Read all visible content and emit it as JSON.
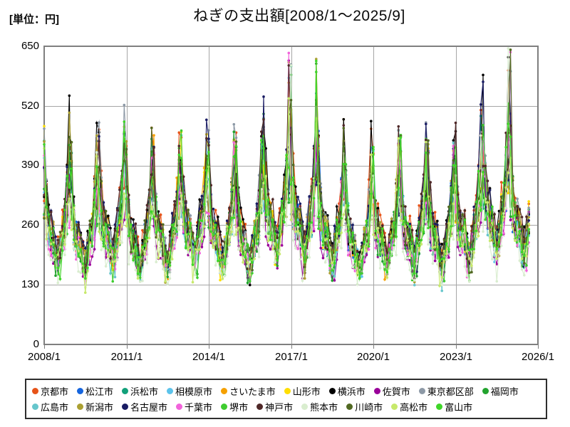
{
  "page": {
    "title": "ねぎの支出額[2008/1～2025/9]",
    "unit_label": "[単位：円]"
  },
  "chart_data": {
    "type": "line",
    "title": "ねぎの支出額[2008/1～2025/9]",
    "unit": "円",
    "x_start": "2008/1",
    "x_end": "2025/9",
    "points_per_series": 213,
    "x_axis_total_months": 216,
    "xlabel": "",
    "ylabel": "円",
    "ylim": [
      0,
      650
    ],
    "y_ticks": [
      0,
      130,
      260,
      390,
      520,
      650
    ],
    "x_ticks": [
      "2008/1",
      "2011/1",
      "2014/1",
      "2017/1",
      "2020/1",
      "2023/1",
      "2026/1"
    ],
    "grid": true,
    "legend_position": "bottom",
    "grid_color": "#a6a6a6",
    "border_color": "#7f7f7f",
    "seasonal_profile": [
      1.38,
      1.08,
      0.94,
      0.9,
      0.86,
      0.76,
      0.7,
      0.8,
      0.92,
      1.0,
      1.16,
      1.46
    ],
    "year_factors": [
      1.0,
      0.94,
      1.02,
      0.93,
      0.96,
      1.03,
      0.97,
      0.95,
      1.14,
      1.1,
      1.0,
      0.9,
      0.97,
      0.99,
      0.95,
      1.03,
      1.16,
      1.1
    ],
    "spike_months_index": [
      107,
      108,
      119,
      203,
      204
    ],
    "series": [
      {
        "name": "京都市",
        "color": "#E65318",
        "base": 290,
        "noise": 1.0,
        "seed": 101
      },
      {
        "name": "松江市",
        "color": "#1565DE",
        "base": 263,
        "noise": 1.0,
        "seed": 202
      },
      {
        "name": "浜松市",
        "color": "#12A07A",
        "base": 258,
        "noise": 0.95,
        "seed": 303
      },
      {
        "name": "相模原市",
        "color": "#5CC3EB",
        "base": 262,
        "noise": 0.95,
        "seed": 404
      },
      {
        "name": "さいたま市",
        "color": "#F5A000",
        "base": 272,
        "noise": 0.95,
        "seed": 505
      },
      {
        "name": "山形市",
        "color": "#FFDE00",
        "base": 266,
        "noise": 1.0,
        "seed": 606
      },
      {
        "name": "横浜市",
        "color": "#000000",
        "base": 284,
        "noise": 1.05,
        "seed": 707
      },
      {
        "name": "佐賀市",
        "color": "#990099",
        "base": 244,
        "noise": 1.1,
        "seed": 808
      },
      {
        "name": "東京都区部",
        "color": "#8D99A6",
        "base": 278,
        "noise": 0.95,
        "seed": 909
      },
      {
        "name": "福岡市",
        "color": "#22A32E",
        "base": 256,
        "noise": 1.0,
        "seed": 1010
      },
      {
        "name": "広島市",
        "color": "#66C6CC",
        "base": 254,
        "noise": 0.95,
        "seed": 1111
      },
      {
        "name": "新潟市",
        "color": "#ABA032",
        "base": 268,
        "noise": 1.0,
        "seed": 1212
      },
      {
        "name": "名古屋市",
        "color": "#191B63",
        "base": 276,
        "noise": 1.05,
        "seed": 1313
      },
      {
        "name": "千葉市",
        "color": "#F263DB",
        "base": 250,
        "noise": 1.05,
        "seed": 1414
      },
      {
        "name": "堺市",
        "color": "#3FCC30",
        "base": 258,
        "noise": 1.0,
        "seed": 1515
      },
      {
        "name": "神戸市",
        "color": "#4F2828",
        "base": 282,
        "noise": 1.05,
        "seed": 1616
      },
      {
        "name": "熊本市",
        "color": "#D9EDCF",
        "base": 230,
        "noise": 1.15,
        "seed": 1717
      },
      {
        "name": "川崎市",
        "color": "#516922",
        "base": 274,
        "noise": 0.95,
        "seed": 1818
      },
      {
        "name": "高松市",
        "color": "#C7E96B",
        "base": 248,
        "noise": 1.0,
        "seed": 1919
      },
      {
        "name": "富山市",
        "color": "#3FD628",
        "base": 262,
        "noise": 1.0,
        "seed": 2020
      }
    ]
  }
}
